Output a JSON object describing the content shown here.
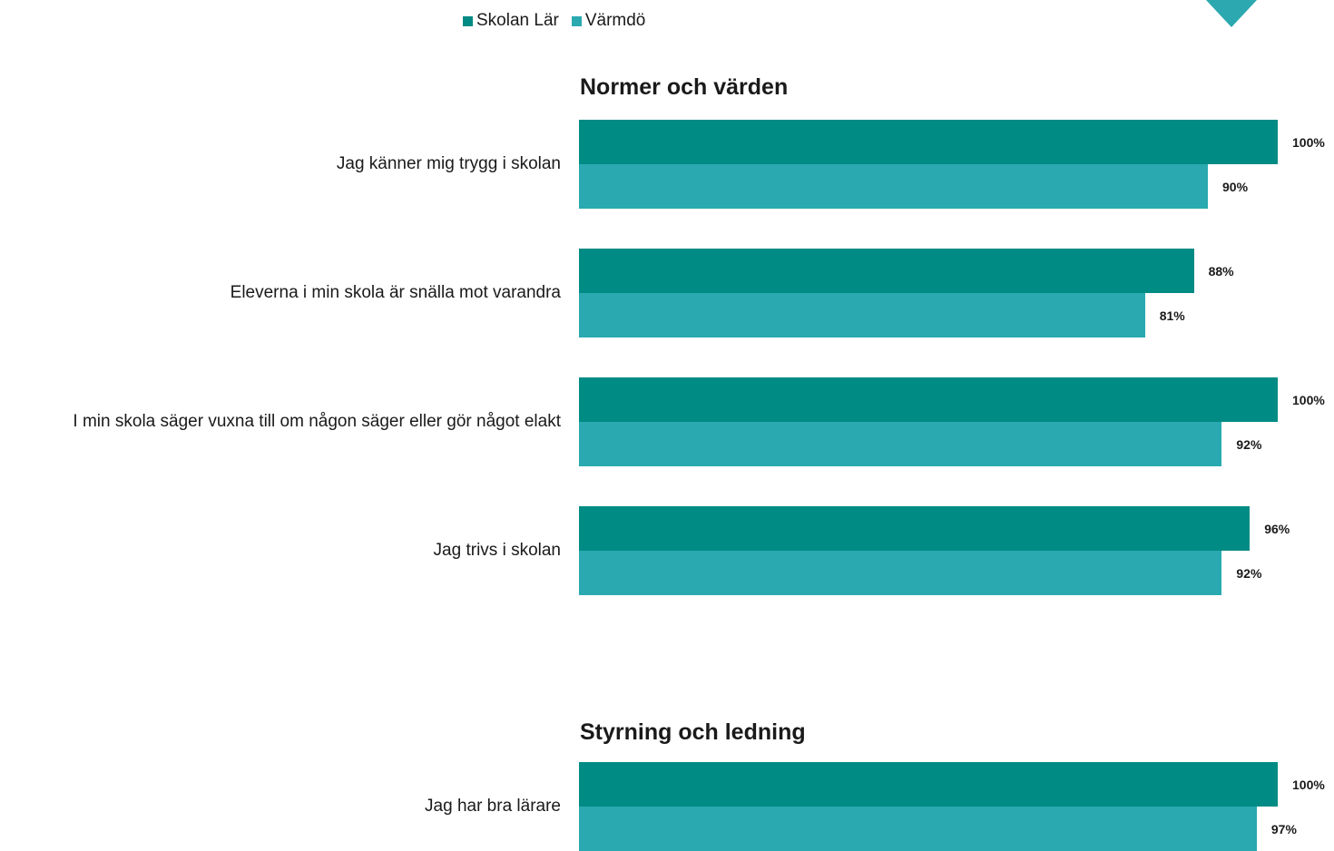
{
  "colors": {
    "skolan": "#008b84",
    "varmdo": "#2aa9b0",
    "logo": "#2ba8b0"
  },
  "legend": {
    "series1": "Skolan Lär",
    "series2": "Värmdö",
    "placement": "top"
  },
  "chart_data": [
    {
      "type": "bar",
      "orientation": "horizontal",
      "title": "Normer och värden",
      "categories": [
        "Jag känner mig trygg i skolan",
        "Eleverna i min skola är snälla mot varandra",
        "I min skola säger vuxna till om någon säger eller gör något elakt",
        "Jag trivs i skolan"
      ],
      "series": [
        {
          "name": "Skolan Lär",
          "values": [
            100,
            88,
            100,
            96
          ],
          "labels": [
            "100%",
            "88%",
            "100%",
            "96%"
          ]
        },
        {
          "name": "Värmdö",
          "values": [
            90,
            81,
            92,
            92
          ],
          "labels": [
            "90%",
            "81%",
            "92%",
            "92%"
          ]
        }
      ],
      "xlim": [
        0,
        100
      ],
      "unit": "%",
      "grid": false
    },
    {
      "type": "bar",
      "orientation": "horizontal",
      "title": "Styrning och ledning",
      "categories": [
        "Jag har bra lärare"
      ],
      "series": [
        {
          "name": "Skolan Lär",
          "values": [
            100
          ],
          "labels": [
            "100%"
          ]
        },
        {
          "name": "Värmdö",
          "values": [
            97
          ],
          "labels": [
            "97%"
          ]
        }
      ],
      "xlim": [
        0,
        100
      ],
      "unit": "%",
      "grid": false
    }
  ]
}
